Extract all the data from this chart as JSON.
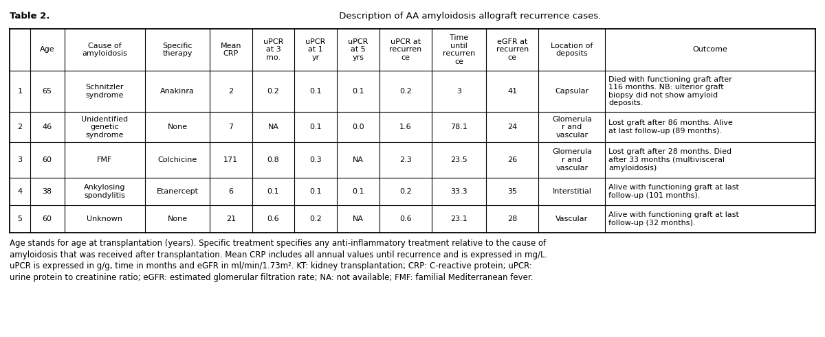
{
  "title_bold": "Table 2.",
  "title_normal": " Description of AA amyloidosis allograft recurrence cases.",
  "col_headers": [
    "",
    "Age",
    "Cause of\namyloidosis",
    "Specific\ntherapy",
    "Mean\nCRP",
    "uPCR\nat 3\nmo.",
    "uPCR\nat 1\nyr",
    "uPCR\nat 5\nyrs",
    "uPCR at\nrecurren\nce",
    "Time\nuntil\nrecurren\nce",
    "eGFR at\nrecurren\nce",
    "Location of\ndeposits",
    "Outcome"
  ],
  "rows": [
    [
      "1",
      "65",
      "Schnitzler\nsyndrome",
      "Anakinra",
      "2",
      "0.2",
      "0.1",
      "0.1",
      "0.2",
      "3",
      "41",
      "Capsular",
      "Died with functioning graft after\n116 months. NB: ulterior graft\nbiopsy did not show amyloid\ndeposits."
    ],
    [
      "2",
      "46",
      "Unidentified\ngenetic\nsyndrome",
      "None",
      "7",
      "NA",
      "0.1",
      "0.0",
      "1.6",
      "78.1",
      "24",
      "Glomerula\nr and\nvascular",
      "Lost graft after 86 months. Alive\nat last follow-up (89 months)."
    ],
    [
      "3",
      "60",
      "FMF",
      "Colchicine",
      "171",
      "0.8",
      "0.3",
      "NA",
      "2.3",
      "23.5",
      "26",
      "Glomerula\nr and\nvascular",
      "Lost graft after 28 months. Died\nafter 33 months (multivisceral\namyloidosis)"
    ],
    [
      "4",
      "38",
      "Ankylosing\nspondylitis",
      "Etanercept",
      "6",
      "0.1",
      "0.1",
      "0.1",
      "0.2",
      "33.3",
      "35",
      "Interstitial",
      "Alive with functioning graft at last\nfollow-up (101 months)."
    ],
    [
      "5",
      "60",
      "Unknown",
      "None",
      "21",
      "0.6",
      "0.2",
      "NA",
      "0.6",
      "23.1",
      "28",
      "Vascular",
      "Alive with functioning graft at last\nfollow-up (32 months)."
    ]
  ],
  "footnote": "Age stands for age at transplantation (years). Specific treatment specifies any anti-inflammatory treatment relative to the cause of\namyloidosis that was received after transplantation. Mean CRP includes all annual values until recurrence and is expressed in mg/L.\nuPCR is expressed in g/g, time in months and eGFR in ml/min/1.73m². KT: kidney transplantation; CRP: C-reactive protein; uPCR:\nurine protein to creatinine ratio; eGFR: estimated glomerular filtration rate; NA: not available; FMF: familial Mediterranean fever.",
  "col_widths_rel": [
    1.0,
    1.7,
    4.0,
    3.2,
    2.1,
    2.1,
    2.1,
    2.1,
    2.6,
    2.7,
    2.6,
    3.3,
    10.4
  ],
  "background_color": "#ffffff",
  "line_color": "#000000",
  "font_size": 8.0,
  "header_font_size": 8.0,
  "title_font_size": 9.5,
  "footnote_font_size": 8.5
}
